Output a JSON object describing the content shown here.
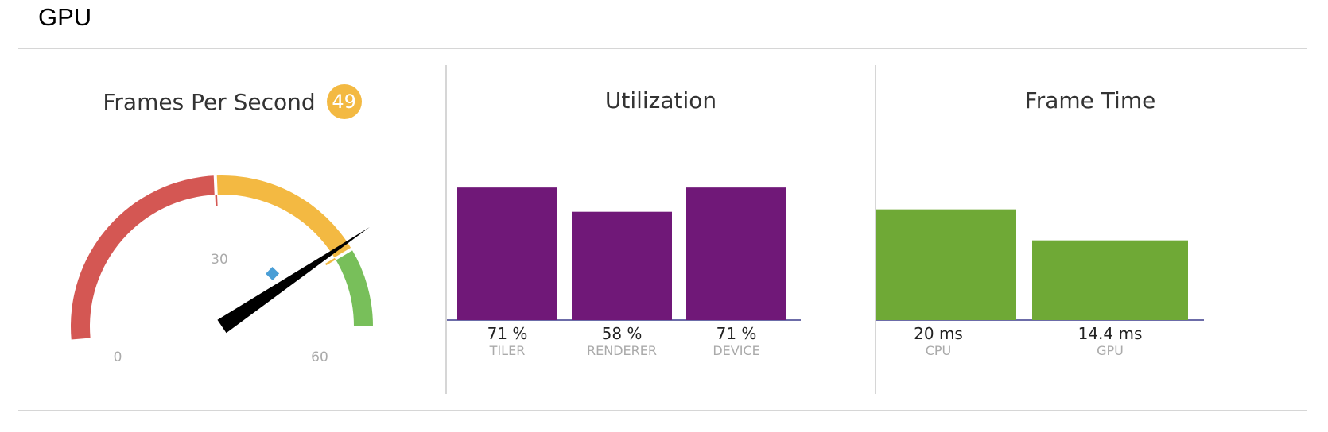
{
  "header": {
    "title": "GPU"
  },
  "fps": {
    "title": "Frames Per Second",
    "value": "49",
    "gauge": {
      "min": 0,
      "max": 60,
      "labels": [
        "0",
        "30",
        "60"
      ],
      "current": 49,
      "marker": 45,
      "segments": [
        {
          "from": 0,
          "to": 30,
          "color": "#d45753"
        },
        {
          "from": 30,
          "to": 50,
          "color": "#f3b942"
        },
        {
          "from": 50,
          "to": 60,
          "color": "#78bf5a"
        }
      ]
    }
  },
  "utilization": {
    "title": "Utilization",
    "chart_data": {
      "type": "bar",
      "categories": [
        "TILER",
        "RENDERER",
        "DEVICE"
      ],
      "values": [
        71,
        58,
        71
      ],
      "value_labels": [
        "71 %",
        "58 %",
        "71 %"
      ],
      "unit": "%",
      "ylim": [
        0,
        100
      ],
      "color": "#701878"
    }
  },
  "frame_time": {
    "title": "Frame Time",
    "chart_data": {
      "type": "bar",
      "categories": [
        "CPU",
        "GPU"
      ],
      "values": [
        20,
        14.4
      ],
      "value_labels": [
        "20 ms",
        "14.4 ms"
      ],
      "unit": "ms",
      "ylim": [
        0,
        33.3
      ],
      "color": "#6fa936"
    }
  }
}
